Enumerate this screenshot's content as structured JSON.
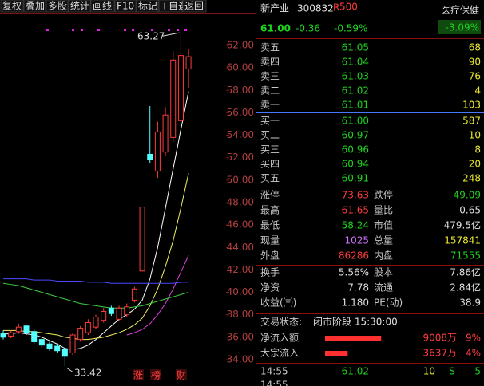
{
  "toolbar": [
    "复权",
    "叠加",
    "多股",
    "统计",
    "画线",
    "F10",
    "标记",
    "+自选",
    "返回"
  ],
  "kline": {
    "ylim": [
      33,
      64
    ],
    "yticks": [
      {
        "value": 62,
        "label": "62.00"
      },
      {
        "value": 60,
        "label": "60.00"
      },
      {
        "value": 58,
        "label": "58.00"
      },
      {
        "value": 56,
        "label": "56.00"
      },
      {
        "value": 54,
        "label": "54.00"
      },
      {
        "value": 52,
        "label": "52.00"
      },
      {
        "value": 50,
        "label": "50.00"
      },
      {
        "value": 48,
        "label": "48.00"
      },
      {
        "value": 46,
        "label": "46.00"
      },
      {
        "value": 44,
        "label": "44.00"
      },
      {
        "value": 42,
        "label": "42.00"
      },
      {
        "value": 40,
        "label": "40.00"
      },
      {
        "value": 38,
        "label": "38.00"
      },
      {
        "value": 36,
        "label": "36.00"
      },
      {
        "value": 34,
        "label": "34.00"
      }
    ],
    "high_label": "63.27",
    "low_label": "33.42",
    "candles": [
      {
        "open": 36.3,
        "close": 36.0,
        "high": 36.6,
        "low": 35.8
      },
      {
        "open": 36.1,
        "close": 36.4,
        "high": 36.6,
        "low": 35.9
      },
      {
        "open": 36.5,
        "close": 36.9,
        "high": 37.2,
        "low": 36.3
      },
      {
        "open": 37.0,
        "close": 36.4,
        "high": 37.1,
        "low": 36.2
      },
      {
        "open": 36.5,
        "close": 35.6,
        "high": 36.7,
        "low": 35.4
      },
      {
        "open": 35.8,
        "close": 35.3,
        "high": 36.0,
        "low": 35.1
      },
      {
        "open": 35.4,
        "close": 35.0,
        "high": 35.6,
        "low": 34.8
      },
      {
        "open": 35.2,
        "close": 34.8,
        "high": 35.4,
        "low": 34.6
      },
      {
        "open": 34.9,
        "close": 34.3,
        "high": 35.1,
        "low": 33.42
      },
      {
        "open": 34.6,
        "close": 36.2,
        "high": 36.4,
        "low": 34.4
      },
      {
        "open": 35.8,
        "close": 36.8,
        "high": 37.0,
        "low": 35.6
      },
      {
        "open": 36.4,
        "close": 37.3,
        "high": 37.6,
        "low": 36.2
      },
      {
        "open": 36.9,
        "close": 37.8,
        "high": 38.0,
        "low": 36.7
      },
      {
        "open": 37.5,
        "close": 38.3,
        "high": 38.6,
        "low": 37.3
      },
      {
        "open": 38.6,
        "close": 38.1,
        "high": 38.8,
        "low": 37.9
      },
      {
        "open": 37.6,
        "close": 38.6,
        "high": 38.8,
        "low": 37.4
      },
      {
        "open": 38.0,
        "close": 38.7,
        "high": 39.0,
        "low": 37.8
      },
      {
        "open": 39.3,
        "close": 40.3,
        "high": 40.5,
        "low": 39.1
      },
      {
        "open": 41.9,
        "close": 47.6,
        "high": 47.6,
        "low": 41.9
      },
      {
        "open": 52.3,
        "close": 51.8,
        "high": 56.6,
        "low": 51.5
      },
      {
        "open": 50.8,
        "close": 54.3,
        "high": 55.2,
        "low": 50.2
      },
      {
        "open": 52.5,
        "close": 55.8,
        "high": 56.5,
        "low": 52.2
      },
      {
        "open": 53.8,
        "close": 60.7,
        "high": 61.5,
        "low": 53.4
      },
      {
        "open": 55.3,
        "close": 61.1,
        "high": 63.27,
        "low": 55.0
      },
      {
        "open": 59.9,
        "close": 61.0,
        "high": 61.65,
        "low": 58.24
      }
    ],
    "ma": [
      {
        "color": "#ffffff",
        "values": [
          36.3,
          36.3,
          36.4,
          36.3,
          36.2,
          36.0,
          35.7,
          35.4,
          35.0,
          34.9,
          35.0,
          35.3,
          35.8,
          36.4,
          37.0,
          37.6,
          38.0,
          38.5,
          39.3,
          41.2,
          44.0,
          47.5,
          51.0,
          54.5,
          57.9
        ]
      },
      {
        "color": "#f0f060",
        "values": [
          36.6,
          36.6,
          36.6,
          36.5,
          36.5,
          36.4,
          36.3,
          36.2,
          36.0,
          35.9,
          35.8,
          35.8,
          35.9,
          36.0,
          36.2,
          36.4,
          36.7,
          37.1,
          37.7,
          38.8,
          40.3,
          42.3,
          44.6,
          47.5,
          50.6
        ]
      },
      {
        "color": "#e040e0",
        "values": [
          null,
          null,
          null,
          null,
          null,
          null,
          null,
          null,
          null,
          null,
          null,
          null,
          null,
          null,
          null,
          null,
          36.2,
          36.4,
          36.7,
          37.2,
          38.0,
          39.0,
          40.3,
          41.8,
          43.3
        ]
      },
      {
        "color": "#40d040",
        "values": [
          40.8,
          40.7,
          40.6,
          40.4,
          40.2,
          40.0,
          39.8,
          39.6,
          39.4,
          39.2,
          39.0,
          38.9,
          38.8,
          38.7,
          38.6,
          38.6,
          38.6,
          38.7,
          38.8,
          39.0,
          39.2,
          39.4,
          39.6,
          39.8,
          40.0
        ]
      },
      {
        "color": "#4848ff",
        "values": [
          41.2,
          41.2,
          41.2,
          41.2,
          41.1,
          41.1,
          41.1,
          41.0,
          41.0,
          41.0,
          41.0,
          40.9,
          40.9,
          40.9,
          40.8,
          40.8,
          40.8,
          40.8,
          40.8,
          40.8,
          40.8,
          40.8,
          40.8,
          40.9,
          40.9
        ]
      }
    ],
    "icons": [
      "涨",
      "榜",
      "财"
    ]
  },
  "quote": {
    "name": "新产业",
    "code": "300832",
    "badge": "R",
    "badge_sup": "500",
    "sector": "医疗保健",
    "sector_change": "-3.09%",
    "price": "61.00",
    "change": "-0.36",
    "change_pct": "-0.59%",
    "sell": [
      [
        "卖五",
        "61.05",
        "68"
      ],
      [
        "卖四",
        "61.04",
        "90"
      ],
      [
        "卖三",
        "61.03",
        "76"
      ],
      [
        "卖二",
        "61.02",
        "4"
      ],
      [
        "卖一",
        "61.01",
        "103"
      ]
    ],
    "buy": [
      [
        "买一",
        "61.00",
        "587"
      ],
      [
        "买二",
        "60.97",
        "10"
      ],
      [
        "买三",
        "60.96",
        "8"
      ],
      [
        "买四",
        "60.94",
        "20"
      ],
      [
        "买五",
        "60.91",
        "248"
      ]
    ],
    "stats": [
      [
        "涨停",
        "73.63",
        "跌停",
        "49.09"
      ],
      [
        "最高",
        "61.65",
        "量比",
        "0.65"
      ],
      [
        "最低",
        "58.24",
        "市值",
        "479.5亿"
      ],
      [
        "现量",
        "1025",
        "总量",
        "157841"
      ],
      [
        "外盘",
        "86286",
        "内盘",
        "71555"
      ]
    ],
    "fund": [
      [
        "换手",
        "5.56%",
        "股本",
        "7.86亿"
      ],
      [
        "净资",
        "7.78",
        "流通",
        "2.84亿"
      ],
      [
        "收益(㈢)",
        "1.180",
        "PE(动)",
        "38.9"
      ]
    ],
    "status_label": "交易状态:",
    "status": "闭市阶段 15:30:00",
    "flow": [
      [
        "净流入额",
        "9008万",
        "9%"
      ],
      [
        "大宗流入",
        "3637万",
        "4%"
      ]
    ],
    "ticks": [
      [
        "14:55",
        "61.02",
        "10",
        "S",
        "5"
      ],
      [
        "14:55"
      ]
    ]
  }
}
